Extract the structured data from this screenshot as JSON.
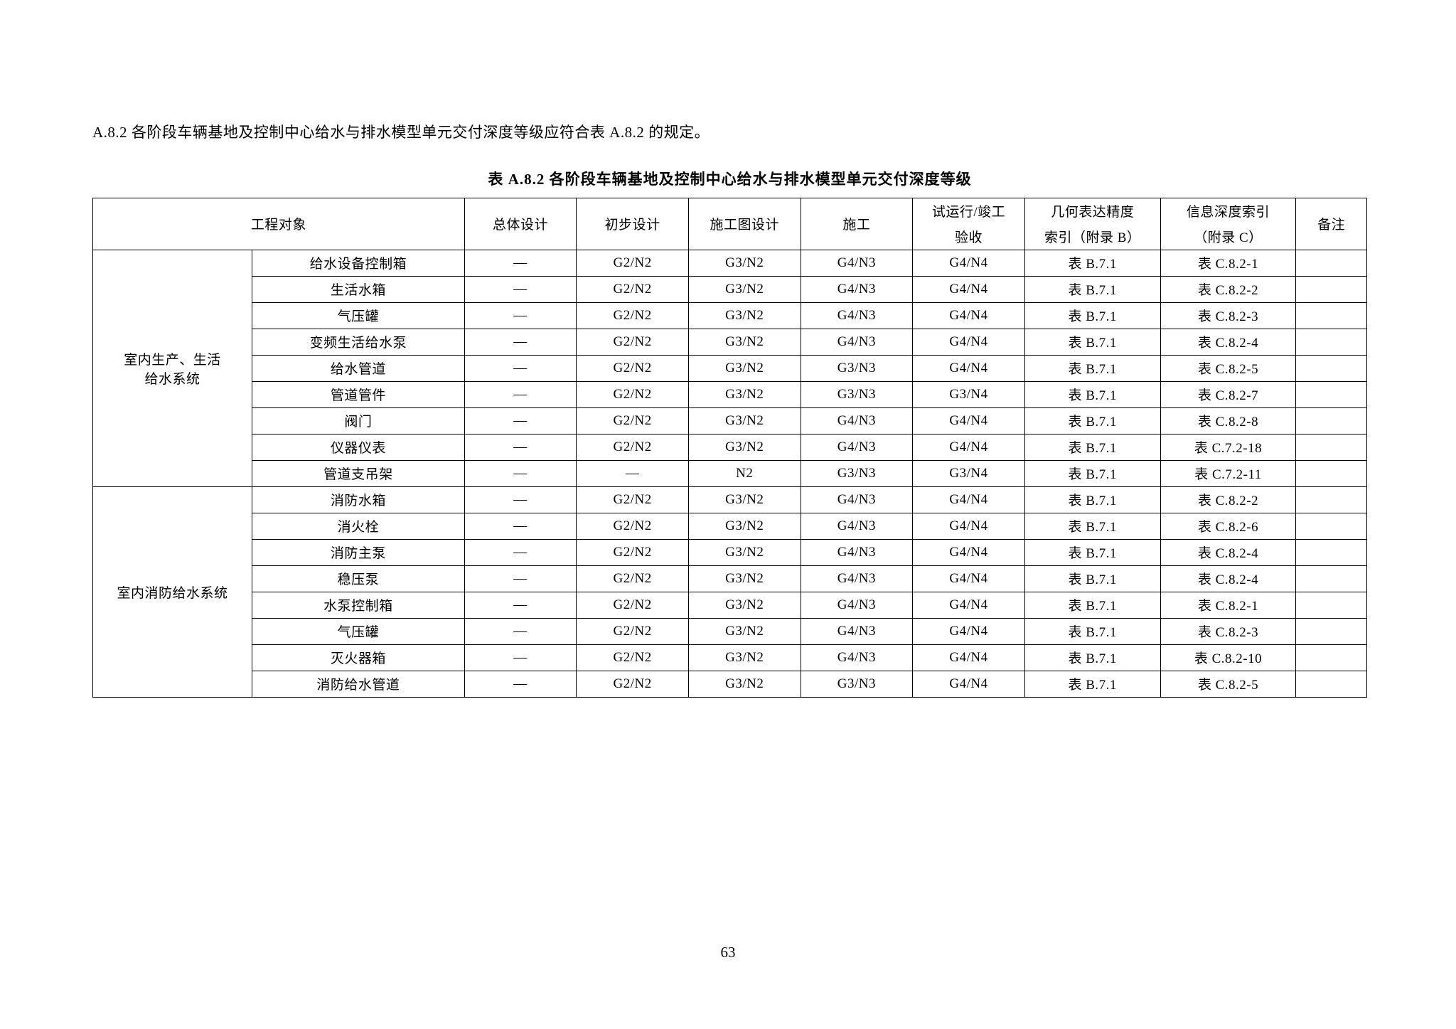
{
  "intro_text": "A.8.2  各阶段车辆基地及控制中心给水与排水模型单元交付深度等级应符合表 A.8.2 的规定。",
  "table_caption": "表 A.8.2  各阶段车辆基地及控制中心给水与排水模型单元交付深度等级",
  "page_number": "63",
  "headers": {
    "proj_obj": "工程对象",
    "overall": "总体设计",
    "prelim": "初步设计",
    "construct_drawing": "施工图设计",
    "construct": "施工",
    "commission_top": "试运行/竣工",
    "commission_bot": "验收",
    "geo_top": "几何表达精度",
    "geo_bot": "索引（附录 B）",
    "info_top": "信息深度索引",
    "info_bot": "（附录 C）",
    "note": "备注"
  },
  "groups": [
    {
      "name_top": "室内生产、生活",
      "name_bot": "给水系统",
      "rows": [
        {
          "item": "给水设备控制箱",
          "overall": "—",
          "prelim": "G2/N2",
          "cd": "G3/N2",
          "con": "G4/N3",
          "comm": "G4/N4",
          "geo": "表 B.7.1",
          "info": "表 C.8.2-1",
          "note": ""
        },
        {
          "item": "生活水箱",
          "overall": "—",
          "prelim": "G2/N2",
          "cd": "G3/N2",
          "con": "G4/N3",
          "comm": "G4/N4",
          "geo": "表 B.7.1",
          "info": "表 C.8.2-2",
          "note": ""
        },
        {
          "item": "气压罐",
          "overall": "—",
          "prelim": "G2/N2",
          "cd": "G3/N2",
          "con": "G4/N3",
          "comm": "G4/N4",
          "geo": "表 B.7.1",
          "info": "表 C.8.2-3",
          "note": ""
        },
        {
          "item": "变频生活给水泵",
          "overall": "—",
          "prelim": "G2/N2",
          "cd": "G3/N2",
          "con": "G4/N3",
          "comm": "G4/N4",
          "geo": "表 B.7.1",
          "info": "表 C.8.2-4",
          "note": ""
        },
        {
          "item": "给水管道",
          "overall": "—",
          "prelim": "G2/N2",
          "cd": "G3/N2",
          "con": "G3/N3",
          "comm": "G4/N4",
          "geo": "表 B.7.1",
          "info": "表 C.8.2-5",
          "note": ""
        },
        {
          "item": "管道管件",
          "overall": "—",
          "prelim": "G2/N2",
          "cd": "G3/N2",
          "con": "G3/N3",
          "comm": "G3/N4",
          "geo": "表 B.7.1",
          "info": "表 C.8.2-7",
          "note": ""
        },
        {
          "item": "阀门",
          "overall": "—",
          "prelim": "G2/N2",
          "cd": "G3/N2",
          "con": "G4/N3",
          "comm": "G4/N4",
          "geo": "表 B.7.1",
          "info": "表 C.8.2-8",
          "note": ""
        },
        {
          "item": "仪器仪表",
          "overall": "—",
          "prelim": "G2/N2",
          "cd": "G3/N2",
          "con": "G4/N3",
          "comm": "G4/N4",
          "geo": "表 B.7.1",
          "info": "表 C.7.2-18",
          "note": ""
        },
        {
          "item": "管道支吊架",
          "overall": "—",
          "prelim": "—",
          "cd": "N2",
          "con": "G3/N3",
          "comm": "G3/N4",
          "geo": "表 B.7.1",
          "info": "表 C.7.2-11",
          "note": ""
        }
      ]
    },
    {
      "name_top": "室内消防给水系统",
      "name_bot": "",
      "rows": [
        {
          "item": "消防水箱",
          "overall": "—",
          "prelim": "G2/N2",
          "cd": "G3/N2",
          "con": "G4/N3",
          "comm": "G4/N4",
          "geo": "表 B.7.1",
          "info": "表 C.8.2-2",
          "note": ""
        },
        {
          "item": "消火栓",
          "overall": "—",
          "prelim": "G2/N2",
          "cd": "G3/N2",
          "con": "G4/N3",
          "comm": "G4/N4",
          "geo": "表 B.7.1",
          "info": "表 C.8.2-6",
          "note": ""
        },
        {
          "item": "消防主泵",
          "overall": "—",
          "prelim": "G2/N2",
          "cd": "G3/N2",
          "con": "G4/N3",
          "comm": "G4/N4",
          "geo": "表 B.7.1",
          "info": "表 C.8.2-4",
          "note": ""
        },
        {
          "item": "稳压泵",
          "overall": "—",
          "prelim": "G2/N2",
          "cd": "G3/N2",
          "con": "G4/N3",
          "comm": "G4/N4",
          "geo": "表 B.7.1",
          "info": "表 C.8.2-4",
          "note": ""
        },
        {
          "item": "水泵控制箱",
          "overall": "—",
          "prelim": "G2/N2",
          "cd": "G3/N2",
          "con": "G4/N3",
          "comm": "G4/N4",
          "geo": "表 B.7.1",
          "info": "表 C.8.2-1",
          "note": ""
        },
        {
          "item": "气压罐",
          "overall": "—",
          "prelim": "G2/N2",
          "cd": "G3/N2",
          "con": "G4/N3",
          "comm": "G4/N4",
          "geo": "表 B.7.1",
          "info": "表 C.8.2-3",
          "note": ""
        },
        {
          "item": "灭火器箱",
          "overall": "—",
          "prelim": "G2/N2",
          "cd": "G3/N2",
          "con": "G4/N3",
          "comm": "G4/N4",
          "geo": "表 B.7.1",
          "info": "表 C.8.2-10",
          "note": ""
        },
        {
          "item": "消防给水管道",
          "overall": "—",
          "prelim": "G2/N2",
          "cd": "G3/N2",
          "con": "G3/N3",
          "comm": "G4/N4",
          "geo": "表 B.7.1",
          "info": "表 C.8.2-5",
          "note": ""
        }
      ]
    }
  ]
}
